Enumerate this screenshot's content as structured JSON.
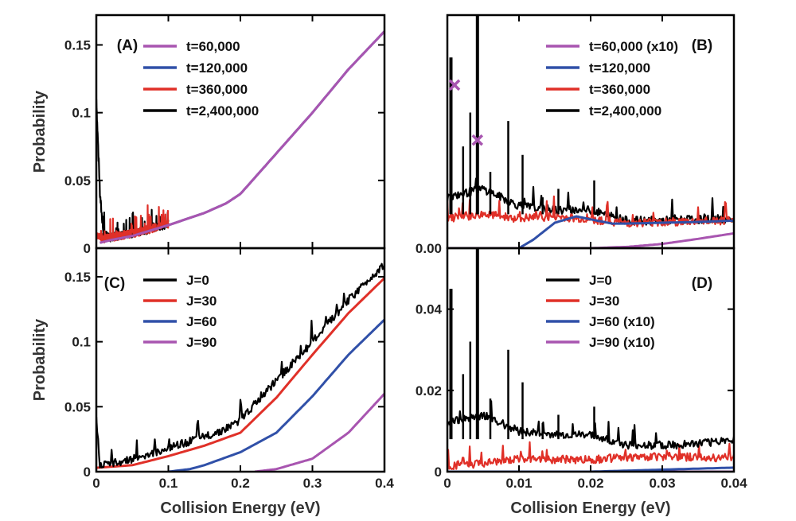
{
  "chart_data": [
    {
      "panel": "(A)",
      "type": "line",
      "xlabel": "",
      "ylabel": "Probability",
      "xlim": [
        0,
        0.4
      ],
      "ylim": [
        0,
        0.172
      ],
      "xticks": [
        0,
        0.1,
        0.2,
        0.3,
        0.4
      ],
      "xtick_labels": [
        "",
        "",
        "",
        "",
        ""
      ],
      "yticks": [
        0,
        0.05,
        0.1,
        0.15
      ],
      "ytick_labels": [
        "0",
        "0.05",
        "0.1",
        "0.15"
      ],
      "legend_position": "top-left",
      "series": [
        {
          "name": "t=60,000",
          "color": "#a855b0",
          "style": "smooth",
          "x": [
            0.005,
            0.02,
            0.05,
            0.1,
            0.15,
            0.18,
            0.2,
            0.25,
            0.3,
            0.35,
            0.4
          ],
          "y": [
            0.004,
            0.006,
            0.009,
            0.017,
            0.026,
            0.033,
            0.04,
            0.07,
            0.1,
            0.132,
            0.16
          ]
        },
        {
          "name": "t=120,000",
          "color": "#3050a8",
          "style": "smooth",
          "x": [
            0.005,
            0.02,
            0.05,
            0.1,
            0.15,
            0.18,
            0.2,
            0.25,
            0.3,
            0.35,
            0.4
          ],
          "y": [
            0.004,
            0.006,
            0.009,
            0.017,
            0.026,
            0.033,
            0.04,
            0.07,
            0.1,
            0.132,
            0.16
          ]
        },
        {
          "name": "t=360,000",
          "color": "#e03028",
          "style": "noisy",
          "x": [
            0,
            0.01,
            0.02,
            0.04,
            0.06,
            0.08,
            0.1
          ],
          "y": [
            0.01,
            0.007,
            0.008,
            0.01,
            0.012,
            0.015,
            0.018
          ]
        },
        {
          "name": "t=2,400,000",
          "color": "#000000",
          "style": "noisy",
          "x": [
            0,
            0.005,
            0.01,
            0.02,
            0.04,
            0.06,
            0.08,
            0.1
          ],
          "y": [
            0.11,
            0.04,
            0.01,
            0.008,
            0.01,
            0.012,
            0.015,
            0.018
          ]
        }
      ]
    },
    {
      "panel": "(B)",
      "type": "line",
      "xlabel": "",
      "ylabel": "",
      "xlim": [
        0,
        0.04
      ],
      "ylim": [
        0,
        0.055
      ],
      "xticks": [
        0,
        0.01,
        0.02,
        0.03,
        0.04
      ],
      "xtick_labels": [
        "",
        "",
        "",
        "",
        ""
      ],
      "yticks": [
        0
      ],
      "ytick_labels": [
        "0.00"
      ],
      "legend_position": "top-right",
      "markers": [
        {
          "x": 0.001,
          "y": 0.0385
        },
        {
          "x": 0.0042,
          "y": 0.0255
        }
      ],
      "series": [
        {
          "name": "t=60,000 (x10)",
          "color": "#a855b0",
          "style": "smooth",
          "x": [
            0,
            0.02,
            0.025,
            0.03,
            0.035,
            0.04
          ],
          "y": [
            0,
            0,
            0.0003,
            0.001,
            0.0022,
            0.0035
          ]
        },
        {
          "name": "t=120,000",
          "color": "#3050a8",
          "style": "smooth",
          "x": [
            0.01,
            0.012,
            0.015,
            0.018,
            0.02,
            0.023,
            0.025,
            0.03,
            0.035,
            0.04
          ],
          "y": [
            0,
            0.002,
            0.006,
            0.0075,
            0.0068,
            0.0058,
            0.0058,
            0.006,
            0.0062,
            0.0065
          ]
        },
        {
          "name": "t=360,000",
          "color": "#e03028",
          "style": "noisy",
          "x": [
            0,
            0.005,
            0.01,
            0.015,
            0.02,
            0.025,
            0.03,
            0.035,
            0.04
          ],
          "y": [
            0.007,
            0.008,
            0.007,
            0.0075,
            0.0068,
            0.006,
            0.0062,
            0.0063,
            0.0065
          ]
        },
        {
          "name": "t=2,400,000",
          "color": "#000000",
          "style": "noisy",
          "x": [
            0,
            0.005,
            0.01,
            0.015,
            0.02,
            0.025,
            0.03,
            0.035,
            0.04
          ],
          "y": [
            0.012,
            0.014,
            0.01,
            0.009,
            0.009,
            0.0065,
            0.0065,
            0.0068,
            0.007
          ]
        }
      ]
    },
    {
      "panel": "(C)",
      "type": "line",
      "xlabel": "Collision Energy (eV)",
      "ylabel": "Probability",
      "xlim": [
        0,
        0.4
      ],
      "ylim": [
        0,
        0.172
      ],
      "xticks": [
        0,
        0.1,
        0.2,
        0.3,
        0.4
      ],
      "xtick_labels": [
        "0",
        "0.1",
        "0.2",
        "0.3",
        "0.4"
      ],
      "yticks": [
        0,
        0.05,
        0.1,
        0.15
      ],
      "ytick_labels": [
        "0",
        "0.05",
        "0.1",
        "0.15"
      ],
      "legend_position": "top-left",
      "series": [
        {
          "name": "J=0",
          "color": "#000000",
          "style": "noisy",
          "x": [
            0,
            0.005,
            0.02,
            0.05,
            0.1,
            0.15,
            0.18,
            0.2,
            0.25,
            0.3,
            0.35,
            0.4
          ],
          "y": [
            0.04,
            0.006,
            0.006,
            0.01,
            0.018,
            0.027,
            0.033,
            0.04,
            0.07,
            0.1,
            0.132,
            0.16
          ]
        },
        {
          "name": "J=30",
          "color": "#e03028",
          "style": "smooth",
          "x": [
            0,
            0.05,
            0.1,
            0.15,
            0.2,
            0.25,
            0.3,
            0.35,
            0.4
          ],
          "y": [
            0.003,
            0.005,
            0.012,
            0.02,
            0.03,
            0.057,
            0.09,
            0.122,
            0.149
          ]
        },
        {
          "name": "J=60",
          "color": "#3050a8",
          "style": "smooth",
          "x": [
            0.1,
            0.13,
            0.15,
            0.2,
            0.25,
            0.3,
            0.35,
            0.4
          ],
          "y": [
            0,
            0.002,
            0.005,
            0.015,
            0.03,
            0.058,
            0.09,
            0.117
          ]
        },
        {
          "name": "J=90",
          "color": "#a855b0",
          "style": "smooth",
          "x": [
            0.22,
            0.25,
            0.3,
            0.35,
            0.4
          ],
          "y": [
            0,
            0.002,
            0.01,
            0.03,
            0.06
          ]
        }
      ]
    },
    {
      "panel": "(D)",
      "type": "line",
      "xlabel": "Collision Energy (eV)",
      "ylabel": "",
      "xlim": [
        0,
        0.04
      ],
      "ylim": [
        0,
        0.055
      ],
      "xticks": [
        0,
        0.01,
        0.02,
        0.03,
        0.04
      ],
      "xtick_labels": [
        "0",
        "0.01",
        "0.02",
        "0.03",
        "0.04"
      ],
      "yticks": [
        0,
        0.02,
        0.04
      ],
      "ytick_labels": [
        "0",
        "0.02",
        "0.04"
      ],
      "legend_position": "top-right",
      "series": [
        {
          "name": "J=0",
          "color": "#000000",
          "style": "noisy",
          "x": [
            0,
            0.005,
            0.01,
            0.015,
            0.02,
            0.025,
            0.03,
            0.035,
            0.04
          ],
          "y": [
            0.012,
            0.014,
            0.01,
            0.009,
            0.009,
            0.0065,
            0.0065,
            0.0068,
            0.008
          ]
        },
        {
          "name": "J=30",
          "color": "#e03028",
          "style": "noisy",
          "x": [
            0,
            0.005,
            0.01,
            0.015,
            0.02,
            0.025,
            0.03,
            0.035,
            0.04
          ],
          "y": [
            0.0015,
            0.002,
            0.003,
            0.003,
            0.003,
            0.0035,
            0.0038,
            0.0035,
            0.0035
          ]
        },
        {
          "name": "J=60 (x10)",
          "color": "#3050a8",
          "style": "smooth",
          "x": [
            0,
            0.02,
            0.03,
            0.04
          ],
          "y": [
            0,
            0,
            0.0005,
            0.001
          ]
        },
        {
          "name": "J=90 (x10)",
          "color": "#a855b0",
          "style": "smooth",
          "x": [
            0,
            0.04
          ],
          "y": [
            0,
            0
          ]
        }
      ]
    }
  ]
}
